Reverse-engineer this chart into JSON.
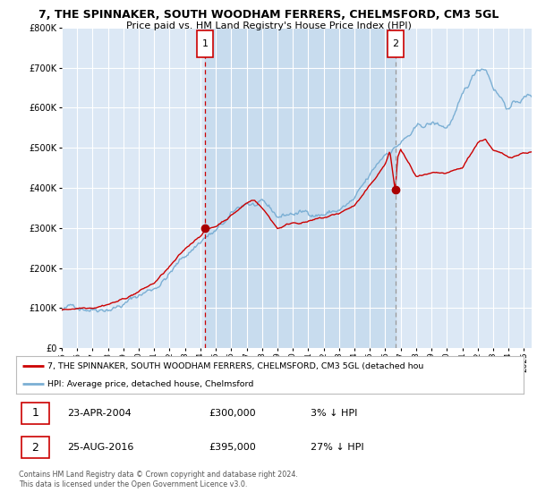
{
  "title": "7, THE SPINNAKER, SOUTH WOODHAM FERRERS, CHELMSFORD, CM3 5GL",
  "subtitle": "Price paid vs. HM Land Registry's House Price Index (HPI)",
  "legend_line1": "7, THE SPINNAKER, SOUTH WOODHAM FERRERS, CHELMSFORD, CM3 5GL (detached hou",
  "legend_line2": "HPI: Average price, detached house, Chelmsford",
  "footnote": "Contains HM Land Registry data © Crown copyright and database right 2024.\nThis data is licensed under the Open Government Licence v3.0.",
  "sale1_label": "1",
  "sale1_date": "23-APR-2004",
  "sale1_price": "£300,000",
  "sale1_hpi": "3% ↓ HPI",
  "sale2_label": "2",
  "sale2_date": "25-AUG-2016",
  "sale2_price": "£395,000",
  "sale2_hpi": "27% ↓ HPI",
  "red_line_color": "#cc0000",
  "blue_line_color": "#7bafd4",
  "background_color": "#ffffff",
  "plot_bg_color": "#dce8f5",
  "between_bg_color": "#c8dcee",
  "grid_color": "#ffffff",
  "vline1_color": "#cc0000",
  "vline2_color": "#999999",
  "marker_color": "#aa0000",
  "sale1_x": 2004.31,
  "sale2_x": 2016.65,
  "sale1_y": 300000,
  "sale2_y": 395000,
  "ylim": [
    0,
    800000
  ],
  "xlim_start": 1995,
  "xlim_end": 2025.5,
  "yticks": [
    0,
    100000,
    200000,
    300000,
    400000,
    500000,
    600000,
    700000,
    800000
  ],
  "ytick_labels": [
    "£0",
    "£100K",
    "£200K",
    "£300K",
    "£400K",
    "£500K",
    "£600K",
    "£700K",
    "£800K"
  ],
  "xticks": [
    1995,
    1996,
    1997,
    1998,
    1999,
    2000,
    2001,
    2002,
    2003,
    2004,
    2005,
    2006,
    2007,
    2008,
    2009,
    2010,
    2011,
    2012,
    2013,
    2014,
    2015,
    2016,
    2017,
    2018,
    2019,
    2020,
    2021,
    2022,
    2023,
    2024,
    2025
  ]
}
